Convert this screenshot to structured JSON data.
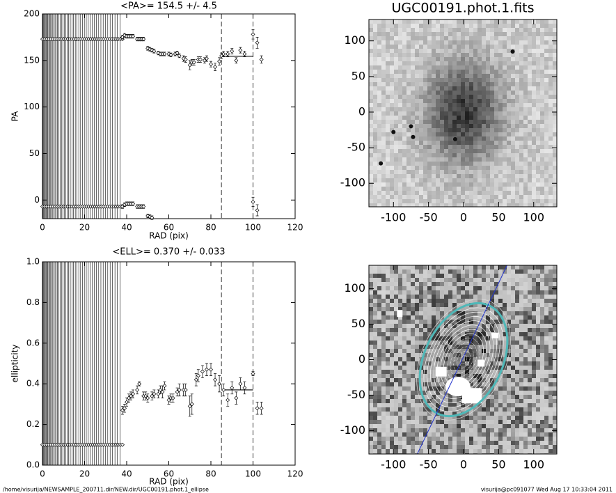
{
  "chart_data": [
    {
      "type": "scatter",
      "title": "<PA>= 154.5 +/-   4.5",
      "x_label": "RAD (pix)",
      "y_label": "PA",
      "xlim": [
        0,
        120
      ],
      "ylim": [
        -20,
        200
      ],
      "xticks": [
        0,
        20,
        40,
        60,
        80,
        100,
        120
      ],
      "yticks": [
        0,
        50,
        100,
        150,
        200
      ],
      "vlines": [
        85,
        100
      ],
      "mean_segment": {
        "x": [
          85,
          100
        ],
        "y": 154.5
      },
      "color": "#000000",
      "series": [
        {
          "x": [
            0,
            1,
            2,
            3,
            4,
            5,
            6,
            7,
            8,
            9,
            10,
            11,
            12,
            13,
            14,
            15,
            16,
            17,
            18,
            19,
            20,
            21,
            22,
            23,
            24,
            25,
            26,
            27,
            28,
            29,
            30,
            31,
            32,
            33,
            34,
            35,
            36,
            37,
            38
          ],
          "values": [
            173,
            173,
            173,
            173,
            173,
            173,
            173,
            173,
            173,
            173,
            173,
            173,
            173,
            173,
            173,
            173,
            173,
            173,
            173,
            173,
            173,
            173,
            173,
            173,
            173,
            173,
            173,
            173,
            173,
            173,
            173,
            173,
            173,
            173,
            173,
            173,
            173,
            173,
            173
          ]
        },
        {
          "x": [
            0,
            1,
            2,
            3,
            4,
            5,
            6,
            7,
            8,
            9,
            10,
            11,
            12,
            13,
            14,
            15,
            16,
            17,
            18,
            19,
            20,
            21,
            22,
            23,
            24,
            25,
            26,
            27,
            28,
            29,
            30,
            31,
            32,
            33,
            34,
            35,
            36,
            37,
            38
          ],
          "values": [
            -7,
            -7,
            -7,
            -7,
            -7,
            -7,
            -7,
            -7,
            -7,
            -7,
            -7,
            -7,
            -7,
            -7,
            -7,
            -7,
            -7,
            -7,
            -7,
            -7,
            -7,
            -7,
            -7,
            -7,
            -7,
            -7,
            -7,
            -7,
            -7,
            -7,
            -7,
            -7,
            -7,
            -7,
            -7,
            -7,
            -7,
            -7,
            -7
          ]
        },
        {
          "x": [
            38,
            39,
            40,
            41,
            42,
            43,
            45,
            46,
            47,
            48,
            50,
            51,
            52,
            53,
            55,
            56,
            57,
            58,
            60,
            61,
            63,
            64,
            65,
            67,
            68,
            70,
            71,
            72,
            74,
            75,
            77,
            78,
            80,
            82,
            84,
            85,
            86,
            88,
            90,
            92,
            94,
            96,
            100,
            102,
            104
          ],
          "values": [
            175,
            177,
            176,
            176,
            176,
            176,
            173,
            173,
            173,
            173,
            163,
            162,
            161,
            160,
            158,
            157,
            157,
            157,
            157,
            156,
            157,
            158,
            155,
            152,
            151,
            145,
            148,
            148,
            151,
            151,
            150,
            152,
            146,
            143,
            149,
            155,
            157,
            157,
            160,
            150,
            161,
            157,
            178,
            169,
            151
          ],
          "errors": [
            2,
            2,
            2,
            2,
            2,
            2,
            2,
            2,
            2,
            2,
            2,
            2,
            2,
            2,
            2,
            2,
            2,
            2,
            2,
            2,
            2,
            2,
            2,
            3,
            3,
            5,
            3,
            3,
            3,
            3,
            3,
            3,
            3,
            4,
            4,
            3,
            3,
            3,
            3,
            3,
            3,
            3,
            5,
            6,
            4
          ]
        },
        {
          "x": [
            38,
            39,
            40,
            41,
            42,
            43,
            45,
            46,
            47,
            48,
            50,
            51,
            52,
            100,
            102
          ],
          "values": [
            -7,
            -5,
            -4,
            -4,
            -4,
            -4,
            -7,
            -7,
            -7,
            -7,
            -17,
            -18,
            -19,
            -2,
            -11
          ],
          "errors": [
            2,
            2,
            2,
            2,
            2,
            2,
            2,
            2,
            2,
            2,
            2,
            2,
            2,
            5,
            6
          ]
        }
      ]
    },
    {
      "type": "scatter",
      "title": "<ELL>= 0.370 +/-  0.033",
      "x_label": "RAD (pix)",
      "y_label": "ellipticity",
      "xlim": [
        0,
        120
      ],
      "ylim": [
        0,
        1
      ],
      "xticks": [
        0,
        20,
        40,
        60,
        80,
        100,
        120
      ],
      "yticks": [
        {
          "value": 0,
          "label": "0.0"
        },
        0.2,
        0.4,
        0.6,
        0.8,
        {
          "value": 1,
          "label": "1.0"
        }
      ],
      "vlines": [
        85,
        100
      ],
      "mean_segment": {
        "x": [
          85,
          100
        ],
        "y": 0.37
      },
      "color": "#000000",
      "series": [
        {
          "x": [
            0,
            1,
            2,
            3,
            4,
            5,
            6,
            7,
            8,
            9,
            10,
            11,
            12,
            13,
            14,
            15,
            16,
            17,
            18,
            19,
            20,
            21,
            22,
            23,
            24,
            25,
            26,
            27,
            28,
            29,
            30,
            31,
            32,
            33,
            34,
            35,
            36,
            37,
            38
          ],
          "values": [
            0.1,
            0.1,
            0.1,
            0.1,
            0.1,
            0.1,
            0.1,
            0.1,
            0.1,
            0.1,
            0.1,
            0.1,
            0.1,
            0.1,
            0.1,
            0.1,
            0.1,
            0.1,
            0.1,
            0.1,
            0.1,
            0.1,
            0.1,
            0.1,
            0.1,
            0.1,
            0.1,
            0.1,
            0.1,
            0.1,
            0.1,
            0.1,
            0.1,
            0.1,
            0.1,
            0.1,
            0.1,
            0.1,
            0.1
          ]
        },
        {
          "x": [
            38,
            39,
            40,
            41,
            42,
            43,
            45,
            46,
            48,
            49,
            50,
            52,
            53,
            55,
            56,
            57,
            58,
            60,
            61,
            62,
            64,
            65,
            67,
            68,
            70,
            71,
            73,
            74,
            76,
            78,
            80,
            82,
            84,
            86,
            88,
            90,
            92,
            94,
            96,
            100,
            102,
            104
          ],
          "values": [
            0.27,
            0.28,
            0.31,
            0.33,
            0.34,
            0.35,
            0.37,
            0.4,
            0.34,
            0.34,
            0.33,
            0.34,
            0.35,
            0.35,
            0.37,
            0.36,
            0.39,
            0.32,
            0.33,
            0.33,
            0.36,
            0.37,
            0.37,
            0.37,
            0.29,
            0.3,
            0.42,
            0.44,
            0.46,
            0.47,
            0.47,
            0.42,
            0.4,
            0.37,
            0.32,
            0.38,
            0.33,
            0.4,
            0.38,
            0.45,
            0.28,
            0.28
          ],
          "errors": [
            0.02,
            0.02,
            0.02,
            0.02,
            0.02,
            0.02,
            0.02,
            0.01,
            0.02,
            0.02,
            0.02,
            0.02,
            0.02,
            0.02,
            0.02,
            0.03,
            0.02,
            0.02,
            0.02,
            0.02,
            0.02,
            0.03,
            0.03,
            0.03,
            0.05,
            0.05,
            0.03,
            0.03,
            0.03,
            0.03,
            0.03,
            0.03,
            0.04,
            0.03,
            0.03,
            0.03,
            0.03,
            0.03,
            0.03,
            0.01,
            0.03,
            0.03
          ]
        }
      ]
    },
    {
      "type": "image",
      "title": "UGC00191.phot.1.fits",
      "xlim": [
        -135,
        133
      ],
      "ylim": [
        -133,
        130
      ],
      "xticks": [
        -100,
        -50,
        0,
        50,
        100
      ],
      "yticks": [
        -100,
        -50,
        0,
        50,
        100
      ]
    },
    {
      "type": "image",
      "xlim": [
        -135,
        133
      ],
      "ylim": [
        -133,
        133
      ],
      "xticks": [
        -100,
        -50,
        0,
        50,
        100
      ],
      "yticks": [
        -100,
        -50,
        0,
        50,
        100
      ],
      "overlay": true
    },
    {
      "type": "footer",
      "left": "/home/visurija/NEWSAMPLE_200711.dir/NEW.dir/UGC00191.phot.1_ellipse",
      "right": "visurija@pc091077  Wed Aug 17 10:33:04 2011"
    }
  ]
}
